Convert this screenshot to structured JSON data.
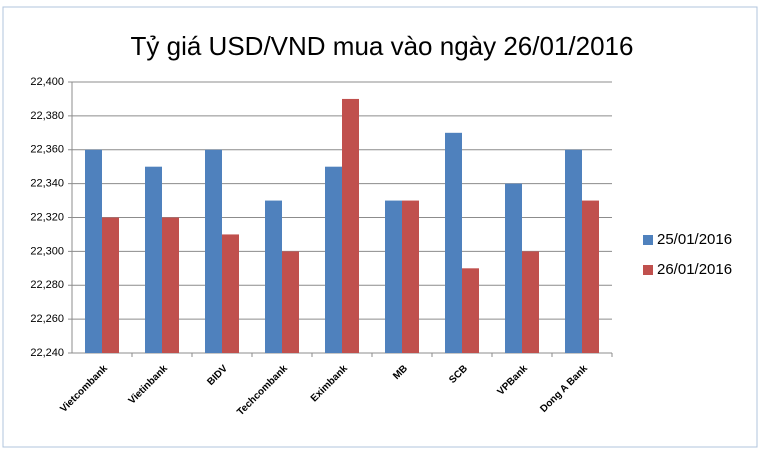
{
  "chart_data": {
    "type": "bar",
    "title": "Tỷ giá USD/VND mua vào ngày 26/01/2016",
    "categories": [
      "Vietcombank",
      "Vietinbank",
      "BIDV",
      "Techcombank",
      "Eximbank",
      "MB",
      "SCB",
      "VPBank",
      "Dong A Bank"
    ],
    "series": [
      {
        "name": "25/01/2016",
        "color": "#4f81bd",
        "values": [
          22360,
          22350,
          22360,
          22330,
          22350,
          22330,
          22370,
          22340,
          22360
        ]
      },
      {
        "name": "26/01/2016",
        "color": "#c0504d",
        "values": [
          22320,
          22320,
          22310,
          22300,
          22390,
          22330,
          22290,
          22300,
          22330
        ]
      }
    ],
    "ylim": [
      22240,
      22400
    ],
    "yticks": [
      {
        "value": 22240,
        "label": "22,240"
      },
      {
        "value": 22260,
        "label": "22,260"
      },
      {
        "value": 22280,
        "label": "22,280"
      },
      {
        "value": 22300,
        "label": "22,300"
      },
      {
        "value": 22320,
        "label": "22,320"
      },
      {
        "value": 22340,
        "label": "22,340"
      },
      {
        "value": 22360,
        "label": "22,360"
      },
      {
        "value": 22380,
        "label": "22,380"
      },
      {
        "value": 22400,
        "label": "22,400"
      }
    ],
    "grid": true,
    "legend": "right"
  }
}
